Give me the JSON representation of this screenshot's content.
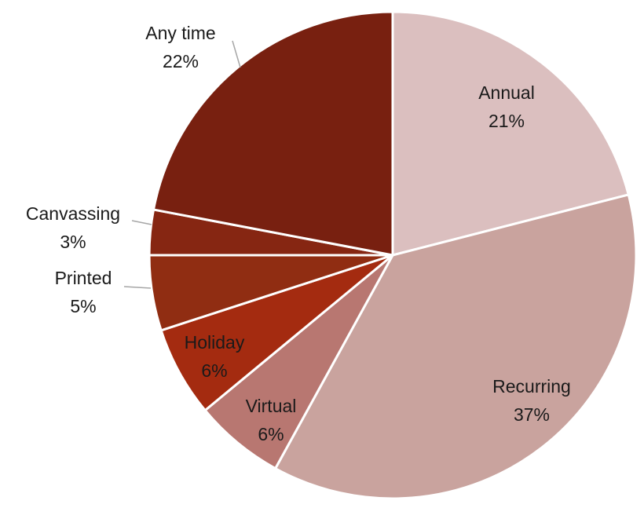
{
  "chart_data": {
    "type": "pie",
    "categories": [
      "Annual",
      "Recurring",
      "Virtual",
      "Holiday",
      "Printed",
      "Canvassing",
      "Any time"
    ],
    "values": [
      21,
      37,
      6,
      6,
      5,
      3,
      22
    ],
    "value_labels": [
      "21%",
      "37%",
      "6%",
      "6%",
      "5%",
      "3%",
      "22%"
    ],
    "colors": [
      "#dbbfbf",
      "#c9a39e",
      "#b87771",
      "#a42b10",
      "#902d12",
      "#862612",
      "#782010"
    ]
  }
}
